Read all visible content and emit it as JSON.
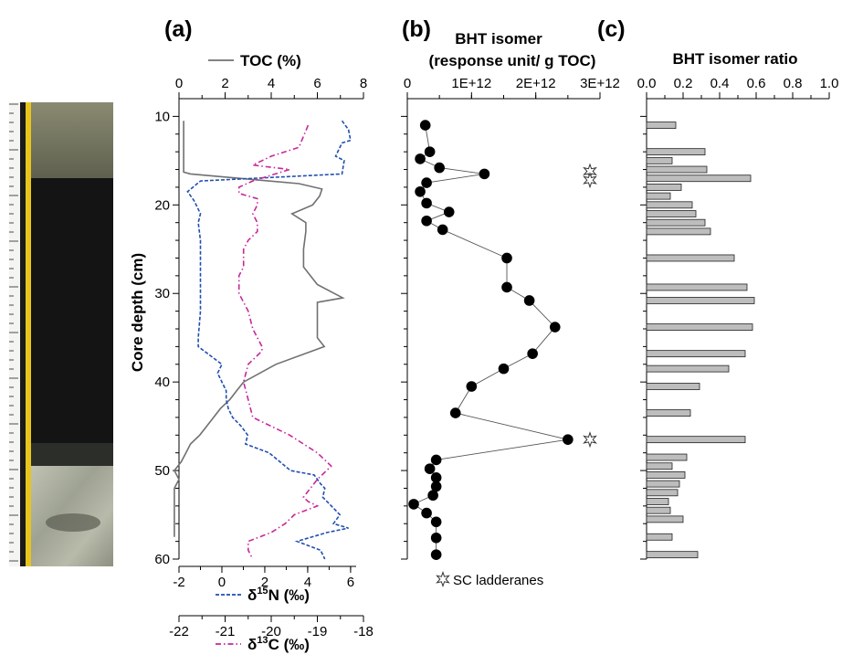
{
  "chart_data": [
    {
      "panel": "(a)",
      "type": "line",
      "ylabel": "Core depth (cm)",
      "ylim": [
        60,
        8
      ],
      "yticks": [
        10,
        20,
        30,
        40,
        50,
        60
      ],
      "axes": {
        "toc": {
          "label": "TOC (%)",
          "lim": [
            0,
            8
          ],
          "ticks": [
            0,
            2,
            4,
            6,
            8
          ],
          "position": "top"
        },
        "d15n": {
          "label_main": "δ",
          "label_sup": "15",
          "label_rest": "N (‰)",
          "lim": [
            -2,
            6.6
          ],
          "ticks": [
            -2,
            0,
            2,
            4,
            6
          ],
          "position": "bottom"
        },
        "d13c": {
          "label_main": "δ",
          "label_sup": "13",
          "label_rest": "C (‰)",
          "lim": [
            -22,
            -18
          ],
          "ticks": [
            -22,
            -21,
            -20,
            -19,
            -18
          ],
          "position": "bottom-2"
        }
      },
      "series": [
        {
          "name": "TOC (%)",
          "axis": "toc",
          "color": "#707070",
          "dash": "solid",
          "points": [
            [
              0.2,
              10.5
            ],
            [
              0.2,
              12
            ],
            [
              0.2,
              13
            ],
            [
              0.2,
              14
            ],
            [
              0.2,
              15
            ],
            [
              0.2,
              16
            ],
            [
              0.2,
              16.3
            ],
            [
              0.5,
              16.5
            ],
            [
              3.5,
              17.2
            ],
            [
              5.2,
              17.6
            ],
            [
              6.2,
              18.2
            ],
            [
              6.1,
              19
            ],
            [
              5.8,
              20
            ],
            [
              4.9,
              21
            ],
            [
              5.5,
              22
            ],
            [
              5.5,
              23
            ],
            [
              5.4,
              25
            ],
            [
              5.4,
              27
            ],
            [
              6.0,
              29
            ],
            [
              7.1,
              30.5
            ],
            [
              6.0,
              31
            ],
            [
              6.0,
              33
            ],
            [
              6.0,
              35
            ],
            [
              6.3,
              36
            ],
            [
              4.2,
              38
            ],
            [
              2.8,
              40
            ],
            [
              2.5,
              41
            ],
            [
              2.2,
              42
            ],
            [
              1.8,
              43
            ],
            [
              1.5,
              44
            ],
            [
              1.2,
              45
            ],
            [
              0.9,
              46
            ],
            [
              0.5,
              47
            ],
            [
              0.3,
              48
            ],
            [
              0.1,
              49
            ],
            [
              -0.2,
              50
            ],
            [
              0,
              51
            ],
            [
              -0.2,
              52
            ],
            [
              -0.2,
              53
            ],
            [
              -0.2,
              55
            ],
            [
              -0.2,
              57.5
            ]
          ]
        },
        {
          "name": "δ15N (‰)",
          "axis": "d15n",
          "color": "#1f4fb0",
          "dash": "4,2",
          "points": [
            [
              5.6,
              10.5
            ],
            [
              5.9,
              11.5
            ],
            [
              6.0,
              12.7
            ],
            [
              5.6,
              13
            ],
            [
              5.3,
              14.5
            ],
            [
              5.7,
              15
            ],
            [
              5.6,
              16.5
            ],
            [
              -1.0,
              17.3
            ],
            [
              -1.6,
              18.5
            ],
            [
              -1.3,
              19.5
            ],
            [
              -1.2,
              20
            ],
            [
              -1.0,
              21
            ],
            [
              -1.1,
              22
            ],
            [
              -1.0,
              24
            ],
            [
              -1.0,
              26
            ],
            [
              -1.0,
              29
            ],
            [
              -1.0,
              32
            ],
            [
              -1.1,
              35
            ],
            [
              -1.1,
              36
            ],
            [
              0,
              38
            ],
            [
              -0.2,
              39
            ],
            [
              0.2,
              41
            ],
            [
              0.2,
              42
            ],
            [
              0.3,
              43
            ],
            [
              0.5,
              44
            ],
            [
              0.9,
              45
            ],
            [
              1.2,
              46
            ],
            [
              1.1,
              47
            ],
            [
              2.2,
              48
            ],
            [
              2.7,
              49
            ],
            [
              3.2,
              50
            ],
            [
              4.3,
              50.5
            ],
            [
              4.6,
              51.5
            ],
            [
              4.8,
              52
            ],
            [
              4.7,
              53
            ],
            [
              5.1,
              54
            ],
            [
              5.5,
              55
            ],
            [
              5.2,
              56
            ],
            [
              5.9,
              56.5
            ],
            [
              4.9,
              57
            ],
            [
              3.5,
              58
            ],
            [
              4.6,
              59
            ],
            [
              4.8,
              60
            ]
          ]
        },
        {
          "name": "δ13C (‰)",
          "axis": "d13c",
          "color": "#c8289a",
          "dash": "6,3,1.5,3",
          "points": [
            [
              -19.2,
              11
            ],
            [
              -19.4,
              13.5
            ],
            [
              -20.0,
              14.5
            ],
            [
              -20.4,
              15.5
            ],
            [
              -19.6,
              16
            ],
            [
              -20.4,
              17.3
            ],
            [
              -20.7,
              18
            ],
            [
              -20.7,
              18.7
            ],
            [
              -20.3,
              19.3
            ],
            [
              -20.3,
              20
            ],
            [
              -20.4,
              21
            ],
            [
              -20.3,
              22
            ],
            [
              -20.3,
              23
            ],
            [
              -20.5,
              24
            ],
            [
              -20.6,
              25
            ],
            [
              -20.6,
              26
            ],
            [
              -20.6,
              27
            ],
            [
              -20.7,
              28
            ],
            [
              -20.7,
              29
            ],
            [
              -20.7,
              30
            ],
            [
              -20.5,
              32
            ],
            [
              -20.4,
              34
            ],
            [
              -20.2,
              36
            ],
            [
              -20.2,
              36.5
            ],
            [
              -20.5,
              38
            ],
            [
              -20.6,
              40
            ],
            [
              -20.5,
              42
            ],
            [
              -20.4,
              44
            ],
            [
              -20.0,
              45
            ],
            [
              -19.6,
              46
            ],
            [
              -19.3,
              47
            ],
            [
              -19.0,
              48
            ],
            [
              -18.7,
              49.5
            ],
            [
              -18.8,
              50
            ],
            [
              -19.0,
              51
            ],
            [
              -19.3,
              53
            ],
            [
              -19.2,
              53.5
            ],
            [
              -19.0,
              54
            ],
            [
              -19.5,
              55
            ],
            [
              -19.7,
              56
            ],
            [
              -20.0,
              57
            ],
            [
              -20.5,
              58
            ],
            [
              -20.5,
              59
            ],
            [
              -20.4,
              60
            ]
          ]
        }
      ]
    },
    {
      "panel": "(b)",
      "type": "line",
      "title_line1": "BHT isomer",
      "title_line2": "(response unit/ g TOC)",
      "xlim": [
        0,
        3000000000000.0
      ],
      "xticks": [
        0,
        1000000000000.0,
        2000000000000.0,
        3000000000000.0
      ],
      "xtick_labels": [
        "0",
        "1E+12",
        "2E+12",
        "3E+12"
      ],
      "ylim": [
        60,
        8
      ],
      "yticks": [
        10,
        20,
        30,
        40,
        50,
        60
      ],
      "series": [
        {
          "name": "BHT isomer",
          "points": [
            [
              280000000000.0,
              11
            ],
            [
              350000000000.0,
              14
            ],
            [
              200000000000.0,
              14.8
            ],
            [
              500000000000.0,
              15.8
            ],
            [
              1200000000000.0,
              16.5
            ],
            [
              300000000000.0,
              17.5
            ],
            [
              200000000000.0,
              18.5
            ],
            [
              300000000000.0,
              19.8
            ],
            [
              650000000000.0,
              20.8
            ],
            [
              300000000000.0,
              21.8
            ],
            [
              550000000000.0,
              22.8
            ],
            [
              1550000000000.0,
              26
            ],
            [
              1550000000000.0,
              29.3
            ],
            [
              1900000000000.0,
              30.8
            ],
            [
              2300000000000.0,
              33.8
            ],
            [
              1950000000000.0,
              36.8
            ],
            [
              1500000000000.0,
              38.5
            ],
            [
              1000000000000.0,
              40.5
            ],
            [
              750000000000.0,
              43.5
            ],
            [
              2500000000000.0,
              46.5
            ],
            [
              450000000000.0,
              48.8
            ],
            [
              350000000000.0,
              49.8
            ],
            [
              450000000000.0,
              50.8
            ],
            [
              450000000000.0,
              51.8
            ],
            [
              400000000000.0,
              52.8
            ],
            [
              100000000000.0,
              53.8
            ],
            [
              300000000000.0,
              54.8
            ],
            [
              450000000000.0,
              55.8
            ],
            [
              450000000000.0,
              57.6
            ],
            [
              450000000000.0,
              59.5
            ]
          ]
        }
      ],
      "markers": [
        {
          "name": "SC ladderanes",
          "depth": 16.2
        },
        {
          "name": "SC ladderanes",
          "depth": 17.2
        },
        {
          "name": "SC ladderanes",
          "depth": 46.5
        }
      ],
      "legend_text": "SC ladderanes"
    },
    {
      "panel": "(c)",
      "type": "bar",
      "title": "BHT isomer ratio",
      "xlim": [
        0,
        1
      ],
      "xticks": [
        0,
        0.2,
        0.4,
        0.6,
        0.8,
        1
      ],
      "xtick_labels": [
        "0.0",
        "0.2",
        "0.4",
        "0.6",
        "0.8",
        "1.0"
      ],
      "ylim": [
        60,
        8
      ],
      "depths": [
        11,
        14,
        15,
        16,
        17,
        18,
        19,
        20,
        21,
        22,
        23,
        26,
        29.3,
        30.8,
        33.8,
        36.8,
        38.5,
        40.5,
        43.5,
        46.5,
        48.5,
        49.5,
        50.5,
        51.5,
        52.5,
        53.5,
        54.5,
        55.5,
        57.5,
        59.5
      ],
      "values": [
        0.16,
        0.32,
        0.14,
        0.33,
        0.57,
        0.19,
        0.13,
        0.25,
        0.27,
        0.32,
        0.35,
        0.48,
        0.55,
        0.59,
        0.58,
        0.54,
        0.45,
        0.29,
        0.24,
        0.54,
        0.22,
        0.14,
        0.21,
        0.18,
        0.17,
        0.12,
        0.13,
        0.2,
        0.14,
        0.28
      ]
    }
  ],
  "labels": {
    "panel_a": "(a)",
    "panel_b": "(b)",
    "panel_c": "(c)"
  },
  "colors": {
    "bar_fill": "#bdbdbd",
    "marker": "#000000"
  }
}
